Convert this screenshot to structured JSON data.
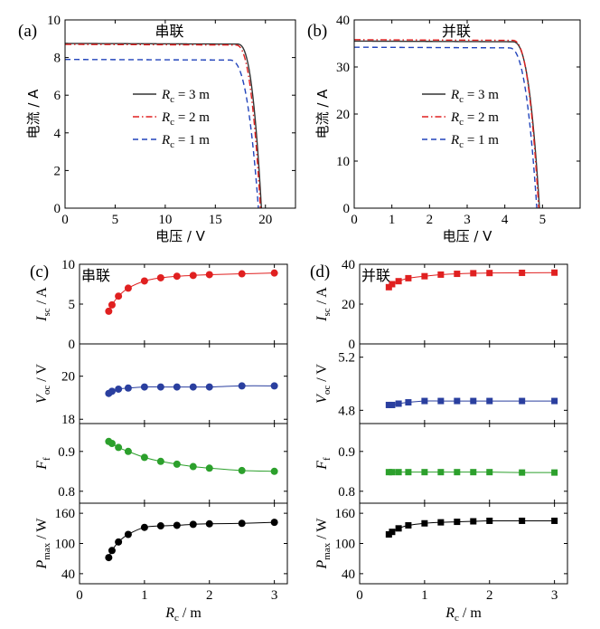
{
  "chart_data": [
    {
      "panel": "a",
      "panel_label": "(a)",
      "type": "line",
      "title": "串联",
      "xlabel": "电压 / V",
      "ylabel": "电流 / A",
      "xlim": [
        0,
        23
      ],
      "ylim": [
        0,
        10
      ],
      "xticks": [
        0,
        5,
        10,
        15,
        20
      ],
      "yticks": [
        0,
        2,
        4,
        6,
        8,
        10
      ],
      "legend_position": "center",
      "series": [
        {
          "name": "Rc = 3 m",
          "label_main": "R",
          "label_sub": "c",
          "label_rest": " = 3 m",
          "color": "#333333",
          "style": "solid",
          "isc": 8.75,
          "voc": 19.6,
          "vknee": 17.2
        },
        {
          "name": "Rc = 2 m",
          "label_main": "R",
          "label_sub": "c",
          "label_rest": " = 2 m",
          "color": "#e02020",
          "style": "dashdot",
          "isc": 8.7,
          "voc": 19.5,
          "vknee": 17.0
        },
        {
          "name": "Rc = 1 m",
          "label_main": "R",
          "label_sub": "c",
          "label_rest": " = 1 m",
          "color": "#2244bb",
          "style": "dashed",
          "isc": 7.9,
          "voc": 19.3,
          "vknee": 16.4
        }
      ]
    },
    {
      "panel": "b",
      "panel_label": "(b)",
      "type": "line",
      "title": "并联",
      "xlabel": "电压 / V",
      "ylabel": "电流 / A",
      "xlim": [
        0,
        6
      ],
      "ylim": [
        0,
        40
      ],
      "xticks": [
        0,
        1,
        2,
        3,
        4,
        5
      ],
      "yticks": [
        0,
        10,
        20,
        30,
        40
      ],
      "legend_position": "center",
      "series": [
        {
          "name": "Rc = 3 m",
          "label_main": "R",
          "label_sub": "c",
          "label_rest": " = 3 m",
          "color": "#333333",
          "style": "solid",
          "isc": 35.5,
          "voc": 4.92,
          "vknee": 4.2
        },
        {
          "name": "Rc = 2 m",
          "label_main": "R",
          "label_sub": "c",
          "label_rest": " = 2 m",
          "color": "#e02020",
          "style": "dashdot",
          "isc": 35.8,
          "voc": 4.9,
          "vknee": 4.2
        },
        {
          "name": "Rc = 1 m",
          "label_main": "R",
          "label_sub": "c",
          "label_rest": " = 1 m",
          "color": "#2244bb",
          "style": "dashed",
          "isc": 34.2,
          "voc": 4.85,
          "vknee": 4.1
        }
      ]
    },
    {
      "panel": "c",
      "panel_label": "(c)",
      "type": "scatter",
      "title": "串联",
      "xlabel": "Rc / m",
      "xlabel_main": "R",
      "xlabel_sub": "c",
      "xlabel_rest": " / m",
      "xlim": [
        0,
        3.2
      ],
      "xticks": [
        0,
        1,
        2,
        3
      ],
      "marker": "circle",
      "subplots": [
        {
          "ylabel_main": "I",
          "ylabel_sub": "sc",
          "ylabel_rest": " / A",
          "ylim": [
            0,
            10
          ],
          "yticks": [
            0,
            5,
            10
          ],
          "color": "#e02020",
          "x": [
            0.45,
            0.5,
            0.6,
            0.75,
            1.0,
            1.25,
            1.5,
            1.75,
            2.0,
            2.5,
            3.0
          ],
          "y": [
            4.1,
            4.9,
            6.0,
            7.0,
            7.9,
            8.3,
            8.5,
            8.6,
            8.7,
            8.8,
            8.9
          ]
        },
        {
          "ylabel_main": "V",
          "ylabel_sub": "oc",
          "ylabel_rest": " / V",
          "ylim": [
            17.8,
            21.5
          ],
          "yticks": [
            18,
            20
          ],
          "color": "#2a3f9f",
          "x": [
            0.45,
            0.5,
            0.6,
            0.75,
            1.0,
            1.25,
            1.5,
            1.75,
            2.0,
            2.5,
            3.0
          ],
          "y": [
            19.2,
            19.3,
            19.4,
            19.45,
            19.5,
            19.5,
            19.5,
            19.5,
            19.5,
            19.55,
            19.55
          ]
        },
        {
          "ylabel_main": "F",
          "ylabel_sub": "f",
          "ylabel_rest": "",
          "ylim": [
            0.77,
            0.97
          ],
          "yticks": [
            0.8,
            0.9
          ],
          "color": "#2ca02c",
          "x": [
            0.45,
            0.5,
            0.6,
            0.75,
            1.0,
            1.25,
            1.5,
            1.75,
            2.0,
            2.5,
            3.0
          ],
          "y": [
            0.925,
            0.92,
            0.91,
            0.9,
            0.885,
            0.875,
            0.868,
            0.862,
            0.858,
            0.852,
            0.85
          ]
        },
        {
          "ylabel_main": "P",
          "ylabel_sub": "max",
          "ylabel_rest": " / W",
          "ylim": [
            20,
            180
          ],
          "yticks": [
            40,
            100,
            160
          ],
          "color": "#000000",
          "x": [
            0.45,
            0.5,
            0.6,
            0.75,
            1.0,
            1.25,
            1.5,
            1.75,
            2.0,
            2.5,
            3.0
          ],
          "y": [
            72,
            86,
            103,
            118,
            132,
            135,
            136,
            138,
            139,
            140,
            142
          ]
        }
      ]
    },
    {
      "panel": "d",
      "panel_label": "(d)",
      "type": "scatter",
      "title": "并联",
      "xlabel": "Rc / m",
      "xlabel_main": "R",
      "xlabel_sub": "c",
      "xlabel_rest": " / m",
      "xlim": [
        0,
        3.2
      ],
      "xticks": [
        0,
        1,
        2,
        3
      ],
      "marker": "square",
      "subplots": [
        {
          "ylabel_main": "I",
          "ylabel_sub": "sc",
          "ylabel_rest": " / A",
          "ylim": [
            0,
            40
          ],
          "yticks": [
            0,
            20,
            40
          ],
          "color": "#e02020",
          "x": [
            0.45,
            0.5,
            0.6,
            0.75,
            1.0,
            1.25,
            1.5,
            1.75,
            2.0,
            2.5,
            3.0
          ],
          "y": [
            28.5,
            30.0,
            31.5,
            33.0,
            34.0,
            34.8,
            35.2,
            35.5,
            35.6,
            35.7,
            35.8
          ]
        },
        {
          "ylabel_main": "V",
          "ylabel_sub": "oc",
          "ylabel_rest": " / V",
          "ylim": [
            4.7,
            5.3
          ],
          "yticks": [
            4.8,
            5.2
          ],
          "color": "#2a3f9f",
          "x": [
            0.45,
            0.5,
            0.6,
            0.75,
            1.0,
            1.25,
            1.5,
            1.75,
            2.0,
            2.5,
            3.0
          ],
          "y": [
            4.84,
            4.84,
            4.85,
            4.86,
            4.87,
            4.87,
            4.87,
            4.87,
            4.87,
            4.87,
            4.87
          ]
        },
        {
          "ylabel_main": "F",
          "ylabel_sub": "f",
          "ylabel_rest": "",
          "ylim": [
            0.77,
            0.97
          ],
          "yticks": [
            0.8,
            0.9
          ],
          "color": "#2ca02c",
          "x": [
            0.45,
            0.5,
            0.6,
            0.75,
            1.0,
            1.25,
            1.5,
            1.75,
            2.0,
            2.5,
            3.0
          ],
          "y": [
            0.848,
            0.848,
            0.848,
            0.848,
            0.848,
            0.848,
            0.848,
            0.848,
            0.848,
            0.847,
            0.847
          ]
        },
        {
          "ylabel_main": "P",
          "ylabel_sub": "max",
          "ylabel_rest": " / W",
          "ylim": [
            20,
            180
          ],
          "yticks": [
            40,
            100,
            160
          ],
          "color": "#000000",
          "x": [
            0.45,
            0.5,
            0.6,
            0.75,
            1.0,
            1.25,
            1.5,
            1.75,
            2.0,
            2.5,
            3.0
          ],
          "y": [
            118,
            123,
            130,
            136,
            140,
            142,
            143,
            144,
            145,
            145,
            145
          ]
        }
      ]
    }
  ]
}
